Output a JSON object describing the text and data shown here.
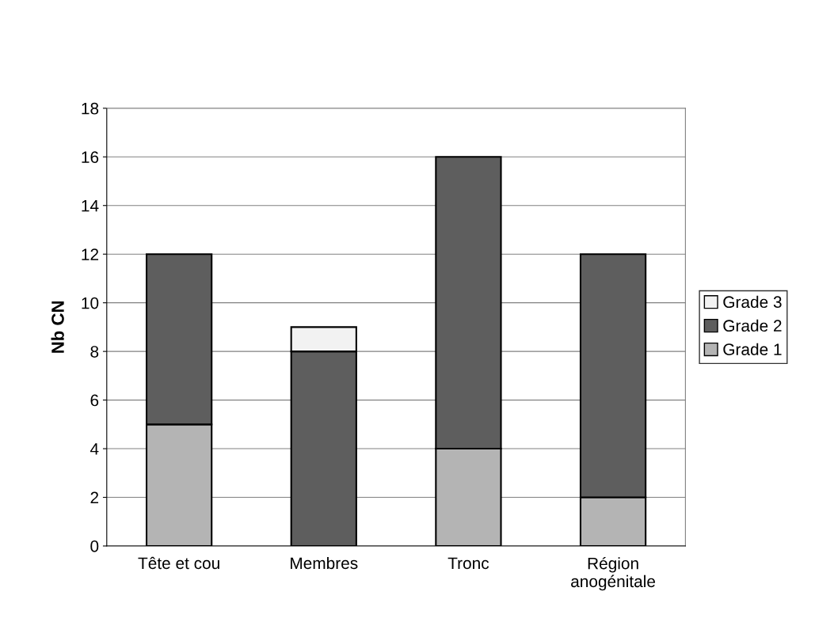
{
  "chart_data": {
    "type": "bar",
    "stacked": true,
    "ylabel": "Nb CN",
    "categories": [
      "Tête et cou",
      "Membres",
      "Tronc",
      "Région\nanogénitale"
    ],
    "series": [
      {
        "name": "Grade 1",
        "color": "#b4b4b4",
        "values": [
          5,
          null,
          4,
          2
        ]
      },
      {
        "name": "Grade 2",
        "color": "#5e5e5e",
        "values": [
          7,
          8,
          12,
          10
        ]
      },
      {
        "name": "Grade 3",
        "color": "#f2f2f2",
        "values": [
          null,
          1,
          null,
          null
        ]
      }
    ],
    "ylim": [
      0,
      18
    ],
    "yticks": [
      0,
      2,
      4,
      6,
      8,
      10,
      12,
      14,
      16,
      18
    ],
    "grid": "y",
    "legend": "right"
  }
}
